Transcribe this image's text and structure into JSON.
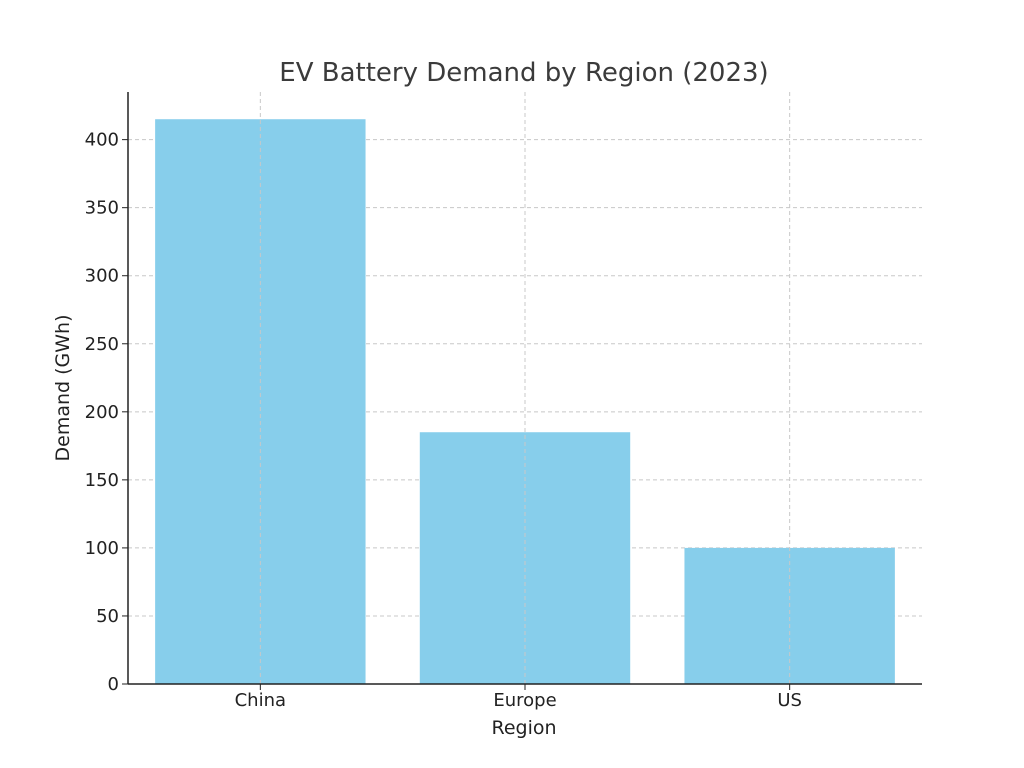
{
  "chart_data": {
    "type": "bar",
    "title": "EV Battery Demand by Region (2023)",
    "xlabel": "Region",
    "ylabel": "Demand (GWh)",
    "categories": [
      "China",
      "Europe",
      "US"
    ],
    "values": [
      415,
      185,
      100
    ],
    "ylim": [
      0,
      435
    ],
    "yticks": [
      0,
      50,
      100,
      150,
      200,
      250,
      300,
      350,
      400
    ],
    "grid": true,
    "bar_color": "#87CEEB"
  }
}
